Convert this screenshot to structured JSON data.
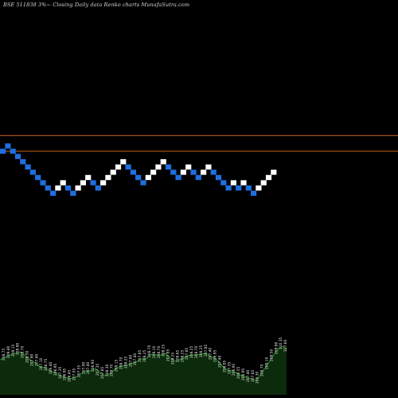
{
  "chart_data": {
    "type": "renko",
    "title": "BSE 511838 3%~  Closing Daily data  Renko  charts MunafaSutra.com",
    "colors": {
      "up_brick": "#ffffff",
      "down_brick": "#1e6fe0",
      "reference_lines": "#c8641e",
      "volume_fill": "#0c2a0c",
      "volume_edge": "#1e8c1e",
      "volume_labels": "#e8e8e8",
      "background": "#000000"
    },
    "reference_lines": [
      12,
      15
    ],
    "bricks": [
      {
        "level": 12,
        "dir": "down"
      },
      {
        "level": 13,
        "dir": "down"
      },
      {
        "level": 12,
        "dir": "down"
      },
      {
        "level": 11,
        "dir": "down"
      },
      {
        "level": 10,
        "dir": "down"
      },
      {
        "level": 9,
        "dir": "down"
      },
      {
        "level": 8,
        "dir": "down"
      },
      {
        "level": 7,
        "dir": "down"
      },
      {
        "level": 6,
        "dir": "down"
      },
      {
        "level": 5,
        "dir": "down"
      },
      {
        "level": 4,
        "dir": "down"
      },
      {
        "level": 5,
        "dir": "up"
      },
      {
        "level": 6,
        "dir": "up"
      },
      {
        "level": 5,
        "dir": "down"
      },
      {
        "level": 4,
        "dir": "down"
      },
      {
        "level": 5,
        "dir": "up"
      },
      {
        "level": 6,
        "dir": "up"
      },
      {
        "level": 7,
        "dir": "up"
      },
      {
        "level": 6,
        "dir": "down"
      },
      {
        "level": 5,
        "dir": "down"
      },
      {
        "level": 6,
        "dir": "up"
      },
      {
        "level": 7,
        "dir": "up"
      },
      {
        "level": 8,
        "dir": "up"
      },
      {
        "level": 9,
        "dir": "up"
      },
      {
        "level": 10,
        "dir": "up"
      },
      {
        "level": 9,
        "dir": "down"
      },
      {
        "level": 8,
        "dir": "down"
      },
      {
        "level": 7,
        "dir": "down"
      },
      {
        "level": 6,
        "dir": "down"
      },
      {
        "level": 7,
        "dir": "up"
      },
      {
        "level": 8,
        "dir": "up"
      },
      {
        "level": 9,
        "dir": "up"
      },
      {
        "level": 10,
        "dir": "up"
      },
      {
        "level": 9,
        "dir": "down"
      },
      {
        "level": 8,
        "dir": "down"
      },
      {
        "level": 7,
        "dir": "down"
      },
      {
        "level": 8,
        "dir": "up"
      },
      {
        "level": 9,
        "dir": "up"
      },
      {
        "level": 8,
        "dir": "down"
      },
      {
        "level": 7,
        "dir": "down"
      },
      {
        "level": 8,
        "dir": "up"
      },
      {
        "level": 9,
        "dir": "up"
      },
      {
        "level": 8,
        "dir": "down"
      },
      {
        "level": 7,
        "dir": "down"
      },
      {
        "level": 6,
        "dir": "down"
      },
      {
        "level": 5,
        "dir": "down"
      },
      {
        "level": 6,
        "dir": "up"
      },
      {
        "level": 5,
        "dir": "down"
      },
      {
        "level": 6,
        "dir": "up"
      },
      {
        "level": 5,
        "dir": "down"
      },
      {
        "level": 4,
        "dir": "down"
      },
      {
        "level": 5,
        "dir": "up"
      },
      {
        "level": 6,
        "dir": "up"
      },
      {
        "level": 7,
        "dir": "up"
      },
      {
        "level": 8,
        "dir": "up"
      }
    ],
    "volume_series": [
      44,
      47,
      50,
      52,
      54,
      50,
      44,
      40,
      35,
      34,
      30,
      28,
      24,
      22,
      20,
      22,
      26,
      30,
      30,
      33,
      28,
      24,
      27,
      33,
      36,
      37,
      39,
      41,
      45,
      45,
      51,
      50,
      50,
      52,
      46,
      42,
      45,
      48,
      50,
      50,
      51,
      52,
      48,
      45,
      38,
      32,
      30,
      28,
      24,
      22,
      20,
      18,
      27,
      36,
      46,
      55,
      61,
      58
    ],
    "volume_labels": [
      "208.75",
      "209.40",
      "209.15",
      "208.90",
      "208.70",
      "208.30",
      "207.90",
      "207.40",
      "207.10",
      "206.75",
      "206.40",
      "206.95",
      "207.35",
      "206.95",
      "206.45",
      "207.05",
      "207.55",
      "207.90",
      "207.40",
      "206.95",
      "207.35",
      "207.85",
      "208.30",
      "208.70",
      "209.15",
      "208.70",
      "208.25",
      "207.80",
      "207.40",
      "207.85",
      "208.25",
      "208.70",
      "209.10",
      "208.70",
      "208.25",
      "207.85",
      "208.25",
      "208.65",
      "208.25",
      "207.85",
      "208.25",
      "208.70",
      "208.25",
      "207.85",
      "207.40",
      "206.95",
      "207.40",
      "206.95",
      "207.35",
      "206.95",
      "206.55",
      "206.95",
      "207.40",
      "207.85",
      "208.30",
      "208.70",
      "209.10",
      "209.50",
      "209.90",
      "210.35",
      "327.60"
    ]
  }
}
